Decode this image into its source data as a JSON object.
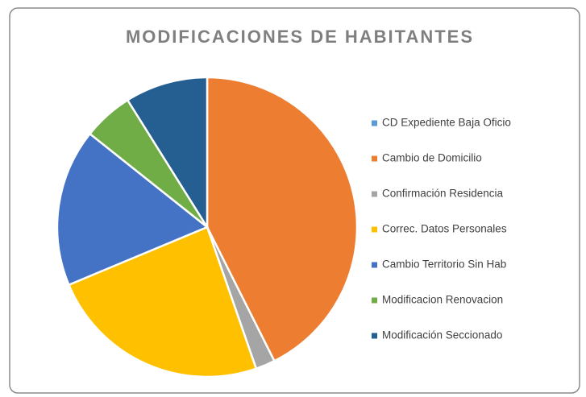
{
  "chart_data": {
    "type": "pie",
    "title": "MODIFICACIONES DE HABITANTES",
    "categories": [
      "CD Expediente Baja Oficio",
      "Cambio de Domicilio",
      "Confirmación Residencia",
      "Correc. Datos Personales",
      "Cambio Territorio Sin Hab",
      "Modificacion Renovacion",
      "Modificación Seccionado"
    ],
    "values": [
      0,
      42.6,
      2.1,
      24,
      17,
      5.4,
      8.9
    ],
    "colors": [
      "#5b9bd5",
      "#ed7d31",
      "#a5a5a5",
      "#ffc000",
      "#4472c4",
      "#70ad47",
      "#255e91"
    ],
    "legend": "right"
  }
}
